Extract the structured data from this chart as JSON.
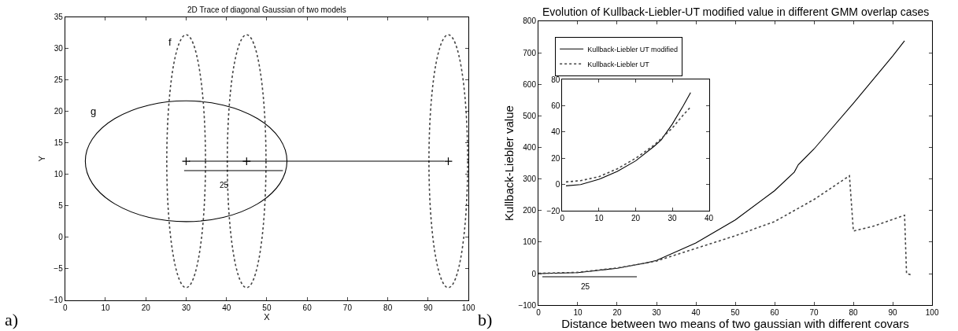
{
  "chart_data": [
    {
      "type": "line",
      "title": "2D Trace of diagonal Gaussian of two models",
      "xlabel": "X",
      "ylabel": "Y",
      "xlim": [
        0,
        100
      ],
      "xticks": [
        0,
        10,
        20,
        30,
        40,
        50,
        60,
        70,
        80,
        90,
        100
      ],
      "ylim": [
        -10,
        35
      ],
      "yticks": [
        -10,
        -5,
        0,
        5,
        10,
        15,
        20,
        25,
        30,
        35
      ],
      "grid": false,
      "legend": false,
      "annotations": [
        "f",
        "g",
        "25",
        "a)"
      ],
      "series": [
        {
          "color": "#000000",
          "line_style": "solid",
          "x": [
            30.7,
            94
          ],
          "values": [
            12.1,
            12.1
          ]
        },
        {
          "color": "#000000",
          "line_style": "solid",
          "x": [
            29.5,
            54
          ],
          "values": [
            10.6,
            10.6
          ]
        },
        {
          "type": "scatter",
          "color": "#000000",
          "marker": "cross",
          "x": [
            30,
            45,
            95
          ],
          "values": [
            12.1,
            12.1,
            12.1
          ]
        }
      ]
    },
    {
      "type": "line",
      "title": "Evolution of Kullback-Liebler-UT modified value in different GMM overlap cases",
      "xlabel": "Distance between two means of two gaussian with different covars",
      "ylabel": "Kullback-Liebler value",
      "xlim": [
        0,
        100
      ],
      "xticks": [
        0,
        10,
        20,
        30,
        40,
        50,
        60,
        70,
        80,
        90,
        100
      ],
      "ylim": [
        -100,
        800
      ],
      "yticks": [
        -100,
        0,
        100,
        200,
        300,
        400,
        500,
        600,
        700,
        800
      ],
      "grid": false,
      "legend": "top left",
      "annotations": [
        "25",
        "b)"
      ],
      "series": [
        {
          "name": "Kullback-Liebler UT modified",
          "color": "#000000",
          "line_style": "solid",
          "x": [
            0,
            10,
            20,
            27,
            30,
            40,
            50,
            60,
            65,
            66,
            70,
            80,
            90,
            93
          ],
          "values": [
            0,
            3,
            17,
            33,
            42,
            97,
            170,
            263,
            322,
            345,
            395,
            540,
            690,
            738
          ]
        },
        {
          "name": "Kullback-Liebler UT",
          "color": "#444444",
          "line_style": "dotted",
          "x": [
            0,
            10,
            20,
            27,
            30,
            40,
            50,
            60,
            65,
            70,
            79,
            80,
            85,
            93,
            93.5,
            95
          ],
          "values": [
            1,
            4,
            18,
            33,
            40,
            80,
            120,
            165,
            200,
            235,
            310,
            135,
            150,
            185,
            0,
            -5
          ]
        },
        {
          "color": "#000000",
          "line_style": "solid",
          "x": [
            1,
            25
          ],
          "values": [
            -10,
            -10
          ]
        }
      ]
    },
    {
      "type": "line",
      "xlim": [
        0,
        40
      ],
      "xticks": [
        0,
        10,
        20,
        30,
        40
      ],
      "ylim": [
        -20,
        80
      ],
      "yticks": [
        -20,
        0,
        20,
        40,
        60,
        80
      ],
      "grid": false,
      "legend": false,
      "series": [
        {
          "color": "#000000",
          "line_style": "solid",
          "x": [
            1,
            5,
            10,
            15,
            20,
            25,
            27,
            30,
            33,
            35
          ],
          "values": [
            -1,
            0,
            4,
            10,
            18,
            29,
            34,
            46,
            60,
            70
          ]
        },
        {
          "color": "#444444",
          "line_style": "dotted",
          "x": [
            1,
            5,
            10,
            15,
            20,
            25,
            27,
            30,
            33,
            35
          ],
          "values": [
            2,
            3,
            6,
            12,
            20,
            30,
            35,
            43,
            53,
            59
          ]
        }
      ]
    }
  ]
}
